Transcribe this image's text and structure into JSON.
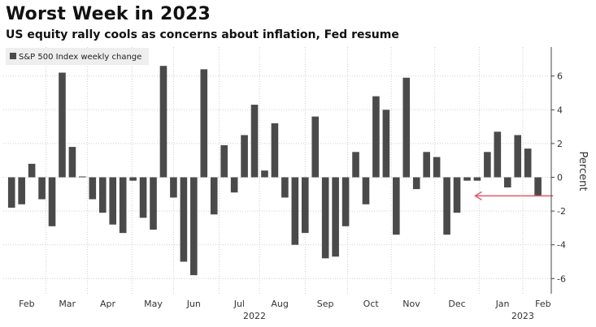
{
  "header": {
    "title": "Worst Week in 2023",
    "subtitle": "US equity rally cools as concerns about inflation, Fed resume"
  },
  "chart_data": {
    "type": "bar",
    "title": "Worst Week in 2023",
    "subtitle": "US equity rally cools as concerns about inflation, Fed resume",
    "ylabel": "Percent",
    "ylim": [
      -6.5,
      7.5
    ],
    "yticks": [
      -6,
      -4,
      -2,
      0,
      2,
      4,
      6
    ],
    "ytick_labels": [
      "-6",
      "-4",
      "-2",
      "0",
      "2",
      "4",
      "6"
    ],
    "x_month_labels": [
      "Feb",
      "Mar",
      "Apr",
      "May",
      "Jun",
      "Jul",
      "Aug",
      "Sep",
      "Oct",
      "Nov",
      "Dec",
      "Jan",
      "Feb"
    ],
    "x_year_labels": [
      "2022",
      "2023"
    ],
    "x_month_label_weeks": [
      1.5,
      5.5,
      9.5,
      14.0,
      18.0,
      22.5,
      26.5,
      31.0,
      35.5,
      39.5,
      44.0,
      48.5,
      52.5
    ],
    "x_year_label_weeks": [
      24.0,
      50.5
    ],
    "x_gridline_weeks": [
      3.4,
      7.5,
      11.9,
      16.0,
      20.5,
      24.5,
      29.0,
      33.2,
      37.5,
      41.8,
      46.2,
      50.5
    ],
    "legend_position": "top-left",
    "bar_color": "#4a4a4a",
    "annotation": {
      "type": "arrow",
      "color": "#e05a6a",
      "y": -1.1,
      "from_week": 53.5,
      "to_week": 45.8
    },
    "series": [
      {
        "name": "S&P 500 Index weekly change",
        "values": [
          -1.8,
          -1.6,
          0.8,
          -1.3,
          -2.9,
          6.2,
          1.8,
          0.05,
          -1.3,
          -2.1,
          -2.8,
          -3.3,
          -0.2,
          -2.4,
          -3.1,
          6.6,
          -1.2,
          -5.0,
          -5.8,
          6.4,
          -2.2,
          1.9,
          -0.9,
          2.5,
          4.3,
          0.4,
          3.2,
          -1.2,
          -4.0,
          -3.3,
          3.6,
          -4.8,
          -4.7,
          -2.9,
          1.5,
          -1.6,
          4.8,
          4.0,
          -3.4,
          5.9,
          -0.7,
          1.5,
          1.2,
          -3.4,
          -2.1,
          -0.2,
          -0.2,
          1.5,
          2.7,
          -0.6,
          2.5,
          1.7,
          -1.1
        ]
      }
    ]
  }
}
